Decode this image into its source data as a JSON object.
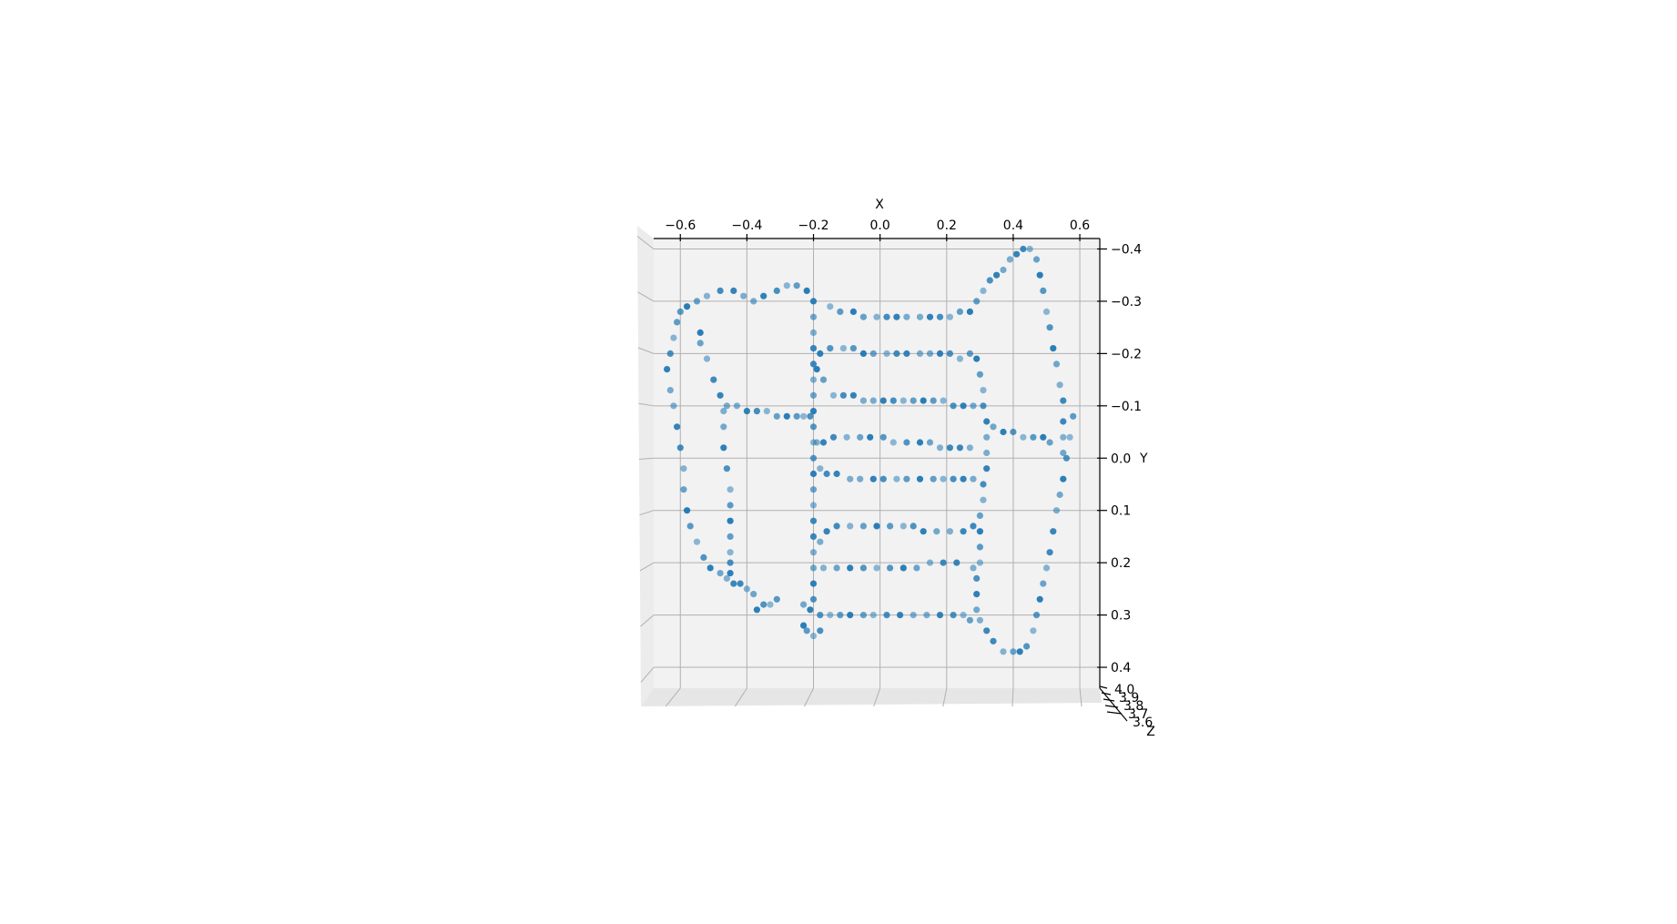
{
  "chart_data": {
    "type": "scatter",
    "projection": "3d",
    "view": "looking down the Z axis",
    "title": "",
    "xlabel": "X",
    "ylabel": "Y",
    "zlabel": "Z",
    "xlim": [
      -0.68,
      0.66
    ],
    "ylim": [
      -0.42,
      0.44
    ],
    "x_axis_position": "top",
    "y_axis_position": "right",
    "y_inverted": true,
    "grid": true,
    "x_ticks": [
      {
        "value": -0.6,
        "label": "−0.6"
      },
      {
        "value": -0.4,
        "label": "−0.4"
      },
      {
        "value": -0.2,
        "label": "−0.2"
      },
      {
        "value": 0.0,
        "label": "0.0"
      },
      {
        "value": 0.2,
        "label": "0.2"
      },
      {
        "value": 0.4,
        "label": "0.4"
      },
      {
        "value": 0.6,
        "label": "0.6"
      }
    ],
    "y_ticks": [
      {
        "value": -0.4,
        "label": "−0.4"
      },
      {
        "value": -0.3,
        "label": "−0.3"
      },
      {
        "value": -0.2,
        "label": "−0.2"
      },
      {
        "value": -0.1,
        "label": "−0.1"
      },
      {
        "value": 0.0,
        "label": "0.0"
      },
      {
        "value": 0.1,
        "label": "0.1"
      },
      {
        "value": 0.2,
        "label": "0.2"
      },
      {
        "value": 0.3,
        "label": "0.3"
      },
      {
        "value": 0.4,
        "label": "0.4"
      }
    ],
    "z_tick_labels": [
      "4.0",
      "3.9",
      "3.8",
      "3.7",
      "3.6"
    ],
    "colors": {
      "point": "#1f77b4",
      "pane": "#f2f2f2",
      "grid": "#b0b0b0"
    },
    "points": [
      [
        -0.6,
        -0.28
      ],
      [
        -0.58,
        -0.29
      ],
      [
        -0.55,
        -0.3
      ],
      [
        -0.52,
        -0.31
      ],
      [
        -0.48,
        -0.32
      ],
      [
        -0.44,
        -0.32
      ],
      [
        -0.41,
        -0.31
      ],
      [
        -0.38,
        -0.3
      ],
      [
        -0.35,
        -0.31
      ],
      [
        -0.31,
        -0.32
      ],
      [
        -0.28,
        -0.33
      ],
      [
        -0.25,
        -0.33
      ],
      [
        -0.22,
        -0.32
      ],
      [
        -0.61,
        -0.26
      ],
      [
        -0.62,
        -0.23
      ],
      [
        -0.63,
        -0.2
      ],
      [
        -0.64,
        -0.17
      ],
      [
        -0.63,
        -0.13
      ],
      [
        -0.62,
        -0.1
      ],
      [
        -0.61,
        -0.06
      ],
      [
        -0.6,
        -0.02
      ],
      [
        -0.59,
        0.02
      ],
      [
        -0.59,
        0.06
      ],
      [
        -0.58,
        0.1
      ],
      [
        -0.57,
        0.13
      ],
      [
        -0.55,
        0.16
      ],
      [
        -0.53,
        0.19
      ],
      [
        -0.51,
        0.21
      ],
      [
        -0.48,
        0.22
      ],
      [
        -0.46,
        0.23
      ],
      [
        -0.44,
        0.24
      ],
      [
        -0.42,
        0.24
      ],
      [
        -0.4,
        0.25
      ],
      [
        -0.38,
        0.26
      ],
      [
        -0.37,
        0.29
      ],
      [
        -0.35,
        0.28
      ],
      [
        -0.33,
        0.28
      ],
      [
        -0.31,
        0.27
      ],
      [
        -0.54,
        -0.24
      ],
      [
        -0.54,
        -0.22
      ],
      [
        -0.52,
        -0.19
      ],
      [
        -0.5,
        -0.15
      ],
      [
        -0.48,
        -0.12
      ],
      [
        -0.47,
        -0.09
      ],
      [
        -0.47,
        -0.06
      ],
      [
        -0.47,
        -0.02
      ],
      [
        -0.46,
        0.02
      ],
      [
        -0.45,
        0.06
      ],
      [
        -0.45,
        0.09
      ],
      [
        -0.45,
        0.12
      ],
      [
        -0.45,
        0.15
      ],
      [
        -0.45,
        0.18
      ],
      [
        -0.45,
        0.2
      ],
      [
        -0.45,
        0.22
      ],
      [
        -0.46,
        -0.1
      ],
      [
        -0.43,
        -0.1
      ],
      [
        -0.4,
        -0.09
      ],
      [
        -0.37,
        -0.09
      ],
      [
        -0.34,
        -0.09
      ],
      [
        -0.31,
        -0.08
      ],
      [
        -0.28,
        -0.08
      ],
      [
        -0.25,
        -0.08
      ],
      [
        -0.23,
        -0.08
      ],
      [
        -0.21,
        -0.08
      ],
      [
        -0.2,
        -0.3
      ],
      [
        -0.2,
        -0.27
      ],
      [
        -0.2,
        -0.24
      ],
      [
        -0.2,
        -0.21
      ],
      [
        -0.2,
        -0.18
      ],
      [
        -0.2,
        -0.15
      ],
      [
        -0.2,
        -0.12
      ],
      [
        -0.2,
        -0.09
      ],
      [
        -0.2,
        -0.06
      ],
      [
        -0.2,
        -0.03
      ],
      [
        -0.2,
        0.0
      ],
      [
        -0.2,
        0.03
      ],
      [
        -0.2,
        0.06
      ],
      [
        -0.2,
        0.09
      ],
      [
        -0.2,
        0.12
      ],
      [
        -0.2,
        0.15
      ],
      [
        -0.2,
        0.18
      ],
      [
        -0.2,
        0.21
      ],
      [
        -0.2,
        0.24
      ],
      [
        -0.2,
        0.27
      ],
      [
        -0.15,
        -0.29
      ],
      [
        -0.12,
        -0.28
      ],
      [
        -0.08,
        -0.28
      ],
      [
        -0.05,
        -0.27
      ],
      [
        -0.01,
        -0.27
      ],
      [
        0.02,
        -0.27
      ],
      [
        0.05,
        -0.27
      ],
      [
        0.08,
        -0.27
      ],
      [
        0.12,
        -0.27
      ],
      [
        0.15,
        -0.27
      ],
      [
        0.18,
        -0.27
      ],
      [
        0.21,
        -0.27
      ],
      [
        0.24,
        -0.28
      ],
      [
        0.27,
        -0.28
      ],
      [
        0.29,
        -0.3
      ],
      [
        0.31,
        -0.32
      ],
      [
        0.33,
        -0.34
      ],
      [
        0.35,
        -0.35
      ],
      [
        0.37,
        -0.36
      ],
      [
        0.39,
        -0.38
      ],
      [
        0.41,
        -0.39
      ],
      [
        0.43,
        -0.4
      ],
      [
        0.45,
        -0.4
      ],
      [
        0.47,
        -0.38
      ],
      [
        0.48,
        -0.35
      ],
      [
        0.49,
        -0.32
      ],
      [
        0.5,
        -0.28
      ],
      [
        0.51,
        -0.25
      ],
      [
        0.52,
        -0.21
      ],
      [
        0.53,
        -0.18
      ],
      [
        0.54,
        -0.14
      ],
      [
        0.55,
        -0.11
      ],
      [
        0.55,
        -0.07
      ],
      [
        0.55,
        -0.04
      ],
      [
        0.55,
        -0.01
      ],
      [
        -0.18,
        -0.2
      ],
      [
        -0.15,
        -0.21
      ],
      [
        -0.11,
        -0.21
      ],
      [
        -0.08,
        -0.21
      ],
      [
        -0.05,
        -0.2
      ],
      [
        -0.02,
        -0.2
      ],
      [
        0.02,
        -0.2
      ],
      [
        0.05,
        -0.2
      ],
      [
        0.08,
        -0.2
      ],
      [
        0.12,
        -0.2
      ],
      [
        0.15,
        -0.2
      ],
      [
        0.18,
        -0.2
      ],
      [
        0.21,
        -0.2
      ],
      [
        0.24,
        -0.19
      ],
      [
        0.27,
        -0.2
      ],
      [
        0.29,
        -0.19
      ],
      [
        0.3,
        -0.16
      ],
      [
        0.31,
        -0.13
      ],
      [
        0.31,
        -0.1
      ],
      [
        0.32,
        -0.07
      ],
      [
        0.32,
        -0.04
      ],
      [
        0.32,
        -0.01
      ],
      [
        0.32,
        0.02
      ],
      [
        0.31,
        0.05
      ],
      [
        0.31,
        0.08
      ],
      [
        0.3,
        0.11
      ],
      [
        0.3,
        0.14
      ],
      [
        0.3,
        0.17
      ],
      [
        0.3,
        0.2
      ],
      [
        0.29,
        0.23
      ],
      [
        0.29,
        0.26
      ],
      [
        0.29,
        0.29
      ],
      [
        0.3,
        0.31
      ],
      [
        0.32,
        0.33
      ],
      [
        0.34,
        0.35
      ],
      [
        0.37,
        0.37
      ],
      [
        0.4,
        0.37
      ],
      [
        0.42,
        0.37
      ],
      [
        0.44,
        0.36
      ],
      [
        0.46,
        0.33
      ],
      [
        0.47,
        0.3
      ],
      [
        0.48,
        0.27
      ],
      [
        0.49,
        0.24
      ],
      [
        0.5,
        0.21
      ],
      [
        0.51,
        0.18
      ],
      [
        0.52,
        0.14
      ],
      [
        0.53,
        0.1
      ],
      [
        0.54,
        0.07
      ],
      [
        0.55,
        0.04
      ],
      [
        0.56,
        0.0
      ],
      [
        0.57,
        -0.04
      ],
      [
        0.58,
        -0.08
      ],
      [
        -0.19,
        -0.17
      ],
      [
        -0.17,
        -0.15
      ],
      [
        -0.14,
        -0.12
      ],
      [
        -0.11,
        -0.12
      ],
      [
        -0.08,
        -0.12
      ],
      [
        -0.05,
        -0.11
      ],
      [
        -0.02,
        -0.11
      ],
      [
        0.01,
        -0.11
      ],
      [
        0.04,
        -0.11
      ],
      [
        0.07,
        -0.11
      ],
      [
        0.1,
        -0.11
      ],
      [
        0.13,
        -0.11
      ],
      [
        0.16,
        -0.11
      ],
      [
        0.19,
        -0.11
      ],
      [
        0.22,
        -0.1
      ],
      [
        0.25,
        -0.1
      ],
      [
        0.28,
        -0.1
      ],
      [
        -0.19,
        -0.03
      ],
      [
        -0.17,
        -0.03
      ],
      [
        -0.14,
        -0.04
      ],
      [
        -0.1,
        -0.04
      ],
      [
        -0.06,
        -0.04
      ],
      [
        -0.03,
        -0.04
      ],
      [
        0.01,
        -0.04
      ],
      [
        0.04,
        -0.03
      ],
      [
        0.08,
        -0.03
      ],
      [
        0.12,
        -0.03
      ],
      [
        0.15,
        -0.03
      ],
      [
        0.18,
        -0.02
      ],
      [
        0.21,
        -0.02
      ],
      [
        0.24,
        -0.02
      ],
      [
        0.27,
        -0.02
      ],
      [
        0.34,
        -0.06
      ],
      [
        0.37,
        -0.05
      ],
      [
        0.4,
        -0.05
      ],
      [
        0.43,
        -0.04
      ],
      [
        0.46,
        -0.04
      ],
      [
        0.49,
        -0.04
      ],
      [
        0.51,
        -0.03
      ],
      [
        -0.18,
        0.02
      ],
      [
        -0.16,
        0.03
      ],
      [
        -0.13,
        0.03
      ],
      [
        -0.09,
        0.04
      ],
      [
        -0.06,
        0.04
      ],
      [
        -0.02,
        0.04
      ],
      [
        0.01,
        0.04
      ],
      [
        0.05,
        0.04
      ],
      [
        0.08,
        0.04
      ],
      [
        0.12,
        0.04
      ],
      [
        0.16,
        0.04
      ],
      [
        0.19,
        0.04
      ],
      [
        0.22,
        0.04
      ],
      [
        0.25,
        0.04
      ],
      [
        0.28,
        0.04
      ],
      [
        -0.18,
        0.16
      ],
      [
        -0.16,
        0.14
      ],
      [
        -0.13,
        0.13
      ],
      [
        -0.09,
        0.13
      ],
      [
        -0.05,
        0.13
      ],
      [
        -0.01,
        0.13
      ],
      [
        0.03,
        0.13
      ],
      [
        0.07,
        0.13
      ],
      [
        0.1,
        0.13
      ],
      [
        0.13,
        0.14
      ],
      [
        0.17,
        0.14
      ],
      [
        0.21,
        0.14
      ],
      [
        0.25,
        0.14
      ],
      [
        0.28,
        0.13
      ],
      [
        -0.17,
        0.21
      ],
      [
        -0.13,
        0.21
      ],
      [
        -0.09,
        0.21
      ],
      [
        -0.05,
        0.21
      ],
      [
        -0.01,
        0.21
      ],
      [
        0.03,
        0.21
      ],
      [
        0.07,
        0.21
      ],
      [
        0.11,
        0.21
      ],
      [
        0.15,
        0.2
      ],
      [
        0.19,
        0.2
      ],
      [
        0.23,
        0.2
      ],
      [
        0.28,
        0.21
      ],
      [
        -0.23,
        0.28
      ],
      [
        -0.21,
        0.29
      ],
      [
        -0.18,
        0.3
      ],
      [
        -0.15,
        0.3
      ],
      [
        -0.12,
        0.3
      ],
      [
        -0.09,
        0.3
      ],
      [
        -0.05,
        0.3
      ],
      [
        -0.02,
        0.3
      ],
      [
        0.02,
        0.3
      ],
      [
        0.06,
        0.3
      ],
      [
        0.1,
        0.3
      ],
      [
        0.14,
        0.3
      ],
      [
        0.18,
        0.3
      ],
      [
        0.22,
        0.3
      ],
      [
        0.25,
        0.3
      ],
      [
        0.27,
        0.31
      ],
      [
        -0.23,
        0.32
      ],
      [
        -0.22,
        0.33
      ],
      [
        -0.2,
        0.34
      ],
      [
        -0.18,
        0.33
      ]
    ]
  }
}
